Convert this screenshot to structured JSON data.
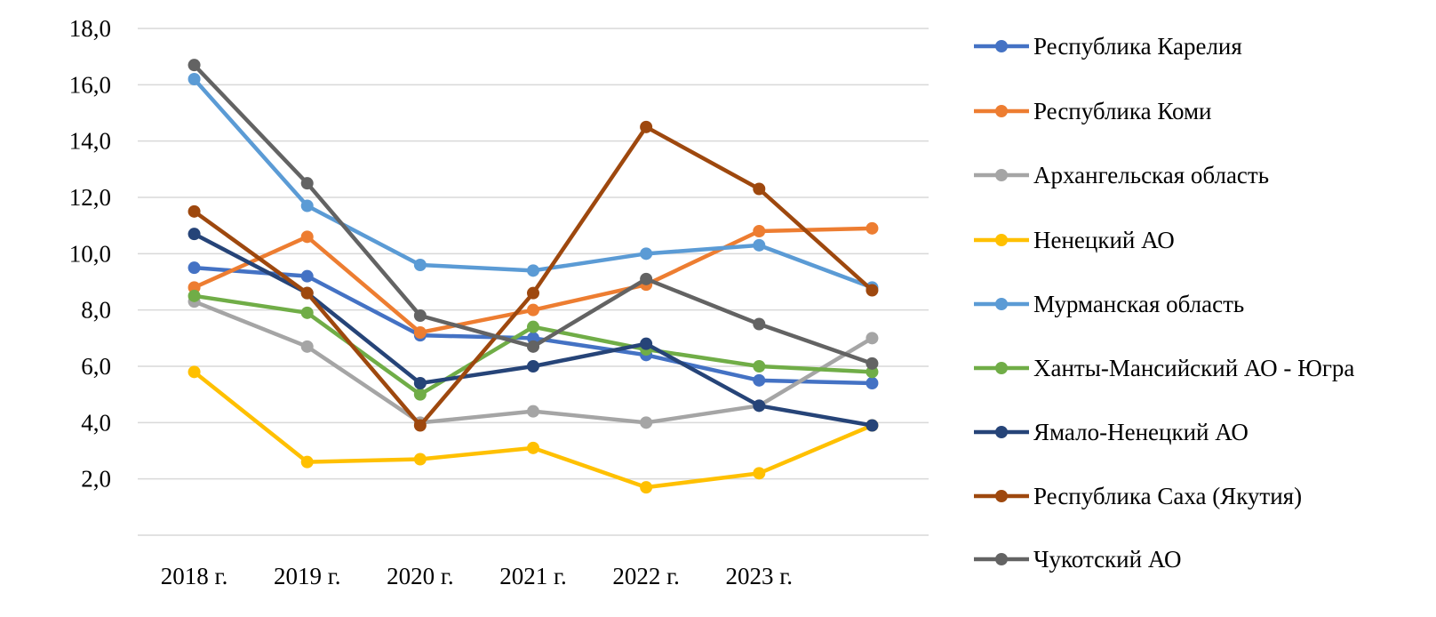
{
  "chart_data": {
    "type": "line",
    "title": "",
    "xlabel": "",
    "ylabel": "",
    "categories": [
      "2018 г.",
      "2019 г.",
      "2020 г.",
      "2021 г.",
      "2022 г.",
      "2023 г.",
      ""
    ],
    "y_ticks": [
      "2,0",
      "4,0",
      "6,0",
      "8,0",
      "10,0",
      "12,0",
      "14,0",
      "16,0",
      "18,0"
    ],
    "ylim": [
      0,
      18
    ],
    "grid": true,
    "legend_position": "right",
    "series": [
      {
        "name": "Республика Карелия",
        "color": "#4472c4",
        "values": [
          9.5,
          9.2,
          7.1,
          7.0,
          6.4,
          5.5,
          5.4
        ]
      },
      {
        "name": "Республика Коми",
        "color": "#ed7d31",
        "values": [
          8.8,
          10.6,
          7.2,
          8.0,
          8.9,
          10.8,
          10.9
        ]
      },
      {
        "name": "Архангельская область",
        "color": "#a5a5a5",
        "values": [
          8.3,
          6.7,
          4.0,
          4.4,
          4.0,
          4.6,
          7.0
        ]
      },
      {
        "name": "Ненецкий АО",
        "color": "#ffc000",
        "values": [
          5.8,
          2.6,
          2.7,
          3.1,
          1.7,
          2.2,
          3.9
        ]
      },
      {
        "name": "Мурманская область",
        "color": "#5b9bd5",
        "values": [
          16.2,
          11.7,
          9.6,
          9.4,
          10.0,
          10.3,
          8.8
        ]
      },
      {
        "name": "Ханты-Мансийский АО - Югра",
        "color": "#70ad47",
        "values": [
          8.5,
          7.9,
          5.0,
          7.4,
          6.6,
          6.0,
          5.8
        ]
      },
      {
        "name": "Ямало-Ненецкий АО",
        "color": "#264478",
        "values": [
          10.7,
          8.6,
          5.4,
          6.0,
          6.8,
          4.6,
          3.9
        ]
      },
      {
        "name": "Республика Саха (Якутия)",
        "color": "#9e480e",
        "values": [
          11.5,
          8.6,
          3.9,
          8.6,
          14.5,
          12.3,
          8.7
        ]
      },
      {
        "name": "Чукотский АО",
        "color": "#636363",
        "values": [
          16.7,
          12.5,
          7.8,
          6.7,
          9.1,
          7.5,
          6.1
        ]
      }
    ]
  }
}
